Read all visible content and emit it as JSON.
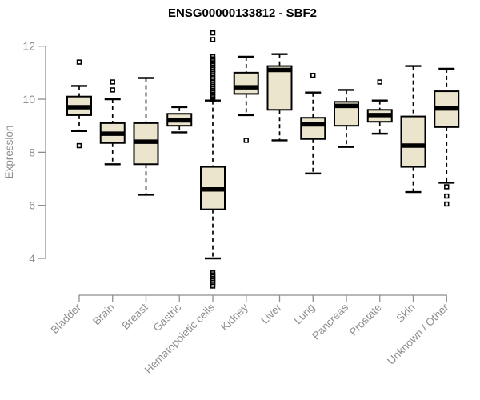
{
  "figure": {
    "title": "ENSG00000133812 - SBF2",
    "ylabel": "Expression"
  },
  "chart_data": {
    "type": "boxplot",
    "title": "ENSG00000133812 - SBF2",
    "xlabel": "",
    "ylabel": "Expression",
    "ylim": [
      4,
      12
    ],
    "yticks": [
      4,
      6,
      8,
      10,
      12
    ],
    "grid": false,
    "legend": "none",
    "box_fill_color": "#ece5cd",
    "box_border_color": "#000000",
    "axis_color": "#8e8e8e",
    "categories": [
      "Bladder",
      "Brain",
      "Breast",
      "Gastric",
      "Hematopoietic cells",
      "Kidney",
      "Liver",
      "Lung",
      "Pancreas",
      "Prostate",
      "Skin",
      "Unknown / Other"
    ],
    "series": [
      {
        "name": "Bladder",
        "whisker_low": 8.8,
        "q1": 9.4,
        "median": 9.7,
        "q3": 10.1,
        "whisker_high": 10.5,
        "outliers": [
          11.4,
          8.25
        ]
      },
      {
        "name": "Brain",
        "whisker_low": 7.55,
        "q1": 8.35,
        "median": 8.7,
        "q3": 9.1,
        "whisker_high": 10.0,
        "outliers": [
          10.65,
          10.35
        ]
      },
      {
        "name": "Breast",
        "whisker_low": 6.4,
        "q1": 7.55,
        "median": 8.4,
        "q3": 9.1,
        "whisker_high": 10.8,
        "outliers": []
      },
      {
        "name": "Gastric",
        "whisker_low": 8.75,
        "q1": 9.0,
        "median": 9.2,
        "q3": 9.45,
        "whisker_high": 9.7,
        "outliers": []
      },
      {
        "name": "Hematopoietic cells",
        "whisker_low": 4.0,
        "q1": 5.85,
        "median": 6.6,
        "q3": 7.45,
        "whisker_high": 9.95,
        "outliers": [
          12.5,
          12.25,
          11.6,
          11.52,
          11.44,
          11.36,
          11.28,
          11.2,
          11.12,
          11.04,
          10.96,
          10.88,
          10.8,
          10.72,
          10.64,
          10.56,
          10.48,
          10.4,
          10.32,
          10.24,
          10.16,
          10.08,
          10.0,
          3.45,
          3.38,
          3.31,
          3.24,
          3.17,
          3.1,
          3.03,
          2.96
        ]
      },
      {
        "name": "Kidney",
        "whisker_low": 9.4,
        "q1": 10.2,
        "median": 10.45,
        "q3": 11.0,
        "whisker_high": 11.6,
        "outliers": [
          8.45
        ]
      },
      {
        "name": "Liver",
        "whisker_low": 8.45,
        "q1": 9.6,
        "median": 11.1,
        "q3": 11.25,
        "whisker_high": 11.7,
        "outliers": []
      },
      {
        "name": "Lung",
        "whisker_low": 7.2,
        "q1": 8.5,
        "median": 9.05,
        "q3": 9.3,
        "whisker_high": 10.25,
        "outliers": [
          10.9
        ]
      },
      {
        "name": "Pancreas",
        "whisker_low": 8.2,
        "q1": 9.0,
        "median": 9.75,
        "q3": 9.9,
        "whisker_high": 10.35,
        "outliers": []
      },
      {
        "name": "Prostate",
        "whisker_low": 8.7,
        "q1": 9.15,
        "median": 9.4,
        "q3": 9.6,
        "whisker_high": 9.95,
        "outliers": [
          10.65
        ]
      },
      {
        "name": "Skin",
        "whisker_low": 6.5,
        "q1": 7.45,
        "median": 8.25,
        "q3": 9.35,
        "whisker_high": 11.25,
        "outliers": []
      },
      {
        "name": "Unknown / Other",
        "whisker_low": 6.85,
        "q1": 8.95,
        "median": 9.65,
        "q3": 10.3,
        "whisker_high": 11.15,
        "outliers": [
          6.7,
          6.35,
          6.05
        ]
      }
    ]
  }
}
